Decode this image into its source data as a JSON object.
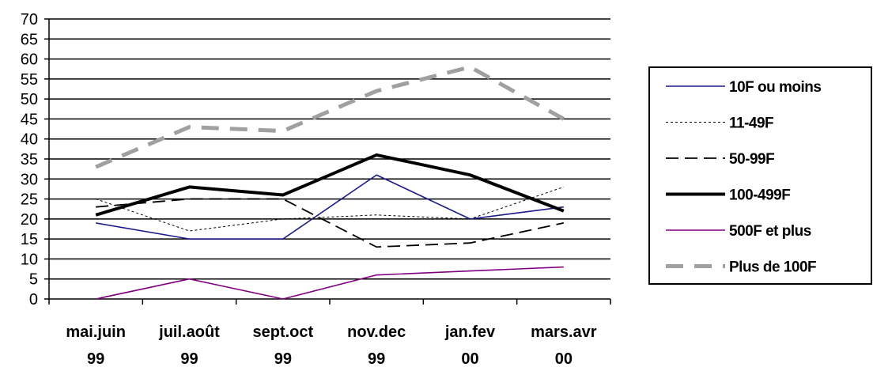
{
  "chart_data": {
    "type": "line",
    "categories": [
      [
        "mai.juin",
        "99"
      ],
      [
        "juil.août",
        "99"
      ],
      [
        "sept.oct",
        "99"
      ],
      [
        "nov.dec",
        "99"
      ],
      [
        "jan.fev",
        "00"
      ],
      [
        "mars.avr",
        "00"
      ]
    ],
    "ylim": [
      0,
      70
    ],
    "ystep": 5,
    "y_ticks": [
      "0",
      "5",
      "10",
      "15",
      "20",
      "25",
      "30",
      "35",
      "40",
      "45",
      "50",
      "55",
      "60",
      "65",
      "70"
    ],
    "grid": "horizontal",
    "legend_position": "right",
    "series": [
      {
        "name": "10F ou moins",
        "values": [
          19,
          15,
          15,
          31,
          20,
          23
        ],
        "color": "#1a1a8c",
        "style": "solid-thin"
      },
      {
        "name": "11-49F",
        "values": [
          25,
          17,
          20,
          21,
          20,
          28
        ],
        "color": "#000000",
        "style": "dotted-thin"
      },
      {
        "name": "50-99F",
        "values": [
          23,
          25,
          25,
          13,
          14,
          19
        ],
        "color": "#000000",
        "style": "dashed"
      },
      {
        "name": "100-499F",
        "values": [
          21,
          28,
          26,
          36,
          31,
          22
        ],
        "color": "#000000",
        "style": "solid-thick"
      },
      {
        "name": "500F et plus",
        "values": [
          0,
          5,
          0,
          6,
          7,
          8
        ],
        "color": "#800080",
        "style": "solid-thin"
      },
      {
        "name": "Plus de 100F",
        "values": [
          33,
          43,
          42,
          52,
          58,
          45
        ],
        "color": "#a0a0a0",
        "style": "dashed-thick"
      }
    ]
  }
}
